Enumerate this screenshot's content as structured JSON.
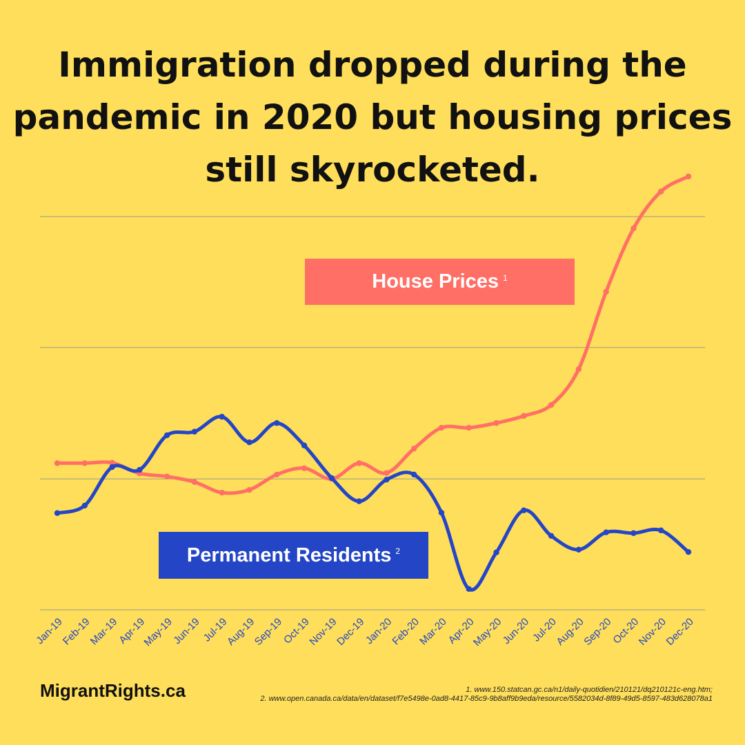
{
  "title": "Immigration dropped during the pandemic in 2020 but housing prices still skyrocketed.",
  "brand": "MigrantRights.ca",
  "sources": [
    "1.  www.150.statcan.gc.ca/n1/daily-quotidien/210121/dq210121c-eng.htm;",
    "2. www.open.canada.ca/data/en/dataset/f7e5498e-0ad8-4417-85c9-9b8aff9b9eda/resource/5582034d-8f89-49d5-8597-483d628078a1"
  ],
  "legend": {
    "house_label": "House Prices",
    "house_note": "1",
    "pr_label": "Permanent Residents",
    "pr_note": "2"
  },
  "colors": {
    "background": "#FEDE5A",
    "house": "#FF6F66",
    "pr": "#2446C6",
    "grid": "#9A9A8A"
  },
  "chart_data": {
    "type": "line",
    "title": "Immigration dropped during the pandemic in 2020 but housing prices still skyrocketed.",
    "categories": [
      "Jan-19",
      "Feb-19",
      "Mar-19",
      "Apr-19",
      "May-19",
      "Jun-19",
      "Jul-19",
      "Aug-19",
      "Sep-19",
      "Oct-19",
      "Nov-19",
      "Dec-19",
      "Jan-20",
      "Feb-20",
      "Mar-20",
      "Apr-20",
      "May-20",
      "Jun-20",
      "Jul-20",
      "Aug-20",
      "Sep-20",
      "Oct-20",
      "Nov-20",
      "Dec-20"
    ],
    "ylim": [
      0,
      100
    ],
    "grid": true,
    "gridlines": [
      0,
      33.3,
      66.7,
      100
    ],
    "xlabel": "",
    "ylabel": "",
    "series": [
      {
        "name": "House Prices",
        "color": "#FF6F66",
        "values": [
          37.3,
          37.3,
          37.4,
          34.7,
          33.9,
          32.5,
          29.8,
          30.5,
          34.4,
          36.0,
          33.3,
          37.3,
          34.8,
          41.0,
          46.3,
          46.3,
          47.5,
          49.3,
          52.1,
          61.2,
          80.9,
          97.0,
          106.4,
          110.2
        ]
      },
      {
        "name": "Permanent Residents",
        "color": "#2446C6",
        "values": [
          24.6,
          26.5,
          36.3,
          35.6,
          44.4,
          45.3,
          49.1,
          42.6,
          47.5,
          41.8,
          33.5,
          27.6,
          33.1,
          34.4,
          24.7,
          5.3,
          14.6,
          25.3,
          18.8,
          15.3,
          19.7,
          19.5,
          20.2,
          14.7
        ]
      }
    ]
  }
}
